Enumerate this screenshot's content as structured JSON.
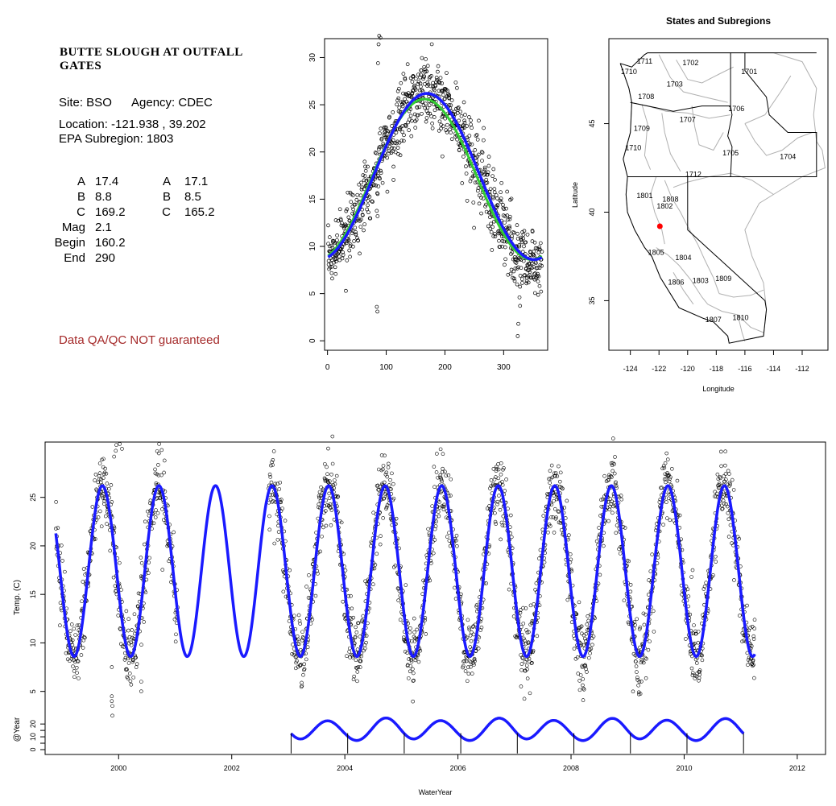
{
  "site": {
    "title_line1": "BUTTE SLOUGH AT OUTFALL",
    "title_line2": "GATES",
    "site_text": "Site: BSO",
    "agency_text": "Agency: CDEC",
    "location_text": "Location: -121.938 , 39.202",
    "subregion_text": "EPA Subregion: 1803",
    "qa_text": "Data QA/QC NOT guaranteed",
    "qa_color": "#a52a2a"
  },
  "params": {
    "left": [
      {
        "label": "A",
        "value": "17.4"
      },
      {
        "label": "B",
        "value": "8.8"
      },
      {
        "label": "C",
        "value": "169.2"
      },
      {
        "label": "Mag",
        "value": "2.1"
      },
      {
        "label": "Begin",
        "value": "160.2"
      },
      {
        "label": "End",
        "value": "290"
      }
    ],
    "right": [
      {
        "label": "A",
        "value": "17.1"
      },
      {
        "label": "B",
        "value": "8.5"
      },
      {
        "label": "C",
        "value": "165.2"
      }
    ]
  },
  "chart_data": [
    {
      "type": "scatter",
      "title": "",
      "xlabel": "",
      "ylabel": "",
      "xlim": [
        -5,
        375
      ],
      "ylim": [
        -1,
        32
      ],
      "xticks": [
        "0",
        "100",
        "200",
        "300"
      ],
      "yticks": [
        "0",
        "5",
        "10",
        "15",
        "20",
        "25",
        "30"
      ],
      "fit_curves": [
        {
          "color": "#1a1aff",
          "A": 17.4,
          "B": 8.8,
          "C": 169.2
        },
        {
          "color": "#33cc33",
          "A": 17.1,
          "B": 8.5,
          "C": 165.2
        }
      ],
      "outliers": [
        [
          88,
          32.3
        ],
        [
          90,
          32.1
        ],
        [
          87,
          31.4
        ],
        [
          86,
          29.4
        ],
        [
          99,
          21.8
        ],
        [
          13,
          7.8
        ],
        [
          85,
          3.1
        ],
        [
          84,
          3.6
        ],
        [
          325,
          7.8
        ],
        [
          327,
          4.6
        ],
        [
          328,
          3.7
        ],
        [
          325,
          1.8
        ],
        [
          324,
          0.5
        ]
      ],
      "point_color": "#000000"
    },
    {
      "type": "map",
      "title": "States and Subregions",
      "xlabel": "Longitude",
      "ylabel": "Latitude",
      "xlim": [
        -125.5,
        -110.2
      ],
      "ylim": [
        32.2,
        49.8
      ],
      "xticks": [
        "-124",
        "-122",
        "-120",
        "-118",
        "-116",
        "-114",
        "-112"
      ],
      "yticks": [
        "35",
        "40",
        "45"
      ],
      "site_point": {
        "lon": -121.938,
        "lat": 39.202,
        "color": "#ff0000"
      },
      "region_labels": [
        {
          "text": "1711",
          "lon": -123.0,
          "lat": 48.4
        },
        {
          "text": "1702",
          "lon": -119.8,
          "lat": 48.3
        },
        {
          "text": "1701",
          "lon": -115.7,
          "lat": 47.8
        },
        {
          "text": "1710",
          "lon": -124.1,
          "lat": 47.8
        },
        {
          "text": "1703",
          "lon": -120.9,
          "lat": 47.1
        },
        {
          "text": "1708",
          "lon": -122.9,
          "lat": 46.4
        },
        {
          "text": "1706",
          "lon": -116.6,
          "lat": 45.7
        },
        {
          "text": "1707",
          "lon": -120.0,
          "lat": 45.1
        },
        {
          "text": "1709",
          "lon": -123.2,
          "lat": 44.6
        },
        {
          "text": "1710",
          "lon": -123.8,
          "lat": 43.5
        },
        {
          "text": "1705",
          "lon": -117.0,
          "lat": 43.2
        },
        {
          "text": "1704",
          "lon": -113.0,
          "lat": 43.0
        },
        {
          "text": "1712",
          "lon": -119.6,
          "lat": 42.0
        },
        {
          "text": "1801",
          "lon": -123.0,
          "lat": 40.8
        },
        {
          "text": "1808",
          "lon": -121.2,
          "lat": 40.6
        },
        {
          "text": "1802",
          "lon": -121.6,
          "lat": 40.2
        },
        {
          "text": "1805",
          "lon": -122.2,
          "lat": 37.6
        },
        {
          "text": "1804",
          "lon": -120.3,
          "lat": 37.3
        },
        {
          "text": "1806",
          "lon": -120.8,
          "lat": 35.9
        },
        {
          "text": "1803",
          "lon": -119.1,
          "lat": 36.0
        },
        {
          "text": "1809",
          "lon": -117.5,
          "lat": 36.1
        },
        {
          "text": "1807",
          "lon": -118.2,
          "lat": 33.8
        },
        {
          "text": "1810",
          "lon": -116.3,
          "lat": 33.9
        }
      ]
    },
    {
      "type": "scatter",
      "title": "",
      "xlabel": "WaterYear",
      "ylabel": "Temp. (C)",
      "ylabel2": "@Year",
      "xlim": [
        1998.7,
        2012.5
      ],
      "ylim": [
        -1.5,
        30.7
      ],
      "xticks": [
        "2000",
        "2002",
        "2004",
        "2006",
        "2008",
        "2010",
        "2012"
      ],
      "yticks": [
        "5",
        "10",
        "15",
        "20",
        "25"
      ],
      "yticks2": [
        "0",
        "10",
        "20"
      ],
      "yticks2_unlabeled": [
        "5",
        "15"
      ],
      "series_start": 1998.89,
      "series_end": 2011.25,
      "missing_data_years": [
        [
          2001.05,
          2002.65
        ]
      ],
      "fit_curve": {
        "color": "#1a1aff",
        "A": 17.4,
        "B": 8.8,
        "C": 169.2
      },
      "annual_curves_start": 2003.05,
      "annual_curves_end": 2011.05,
      "year_markers": [
        2003.05,
        2004.05,
        2005.05,
        2006.05,
        2007.05,
        2008.05,
        2009.05,
        2010.05,
        2011.05
      ],
      "outliers": [
        [
          1999.67,
          28.5
        ],
        [
          1999.73,
          27.0
        ],
        [
          1999.8,
          23.5
        ],
        [
          1999.85,
          19.5
        ],
        [
          1999.88,
          7.5
        ],
        [
          1999.88,
          4.5
        ],
        [
          1999.88,
          4.0
        ],
        [
          1999.89,
          3.5
        ],
        [
          1999.89,
          2.5
        ],
        [
          1999.92,
          29.2
        ],
        [
          1999.95,
          29.8
        ],
        [
          1999.96,
          30.4
        ],
        [
          2000.02,
          30.5
        ],
        [
          2000.06,
          30.0
        ],
        [
          2000.17,
          8.8
        ],
        [
          2000.4,
          5.0
        ],
        [
          2000.4,
          6.0
        ],
        [
          2010.13,
          16.8
        ],
        [
          2010.15,
          17.5
        ],
        [
          2008.23,
          5.2
        ],
        [
          2009.2,
          4.7
        ]
      ]
    }
  ]
}
